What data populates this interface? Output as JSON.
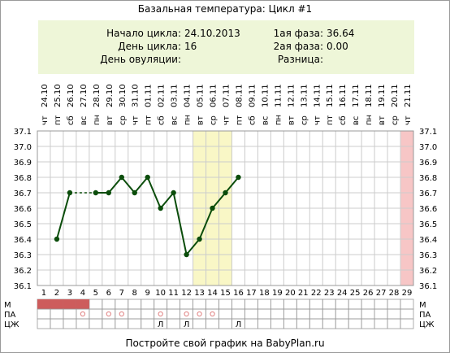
{
  "title": "Базальная температура: Цикл #1",
  "info": {
    "start_label": "Начало цикла:",
    "start_value": "24.10.2013",
    "day_label": "День цикла:",
    "day_value": "16",
    "ovulation_label": "День овуляции:",
    "ovulation_value": "",
    "phase1_label": "1ая фаза:",
    "phase1_value": "36.64",
    "phase2_label": "2ая фаза:",
    "phase2_value": "0.00",
    "diff_label": "Разница:",
    "diff_value": ""
  },
  "footer": "Постройте свой график на BabyPlan.ru",
  "colors": {
    "info_bg": "#eef6d8",
    "line": "#0b4d0b",
    "highlight": "#f9f7c6",
    "end_day": "#f7c6c6",
    "menstruation": "#cd5c5c",
    "marker": "#e08080"
  },
  "chart_data": {
    "type": "line",
    "days": [
      1,
      2,
      3,
      4,
      5,
      6,
      7,
      8,
      9,
      10,
      11,
      12,
      13,
      14,
      15,
      16,
      17,
      18,
      19,
      20,
      21,
      22,
      23,
      24,
      25,
      26,
      27,
      28,
      29
    ],
    "weekdays": [
      "чт",
      "пт",
      "сб",
      "вс",
      "пн",
      "вт",
      "ср",
      "чт",
      "пт",
      "сб",
      "вс",
      "пн",
      "вт",
      "ср",
      "чт",
      "пт",
      "сб",
      "вс",
      "пн",
      "вт",
      "ср",
      "чт",
      "пт",
      "сб",
      "вс",
      "пн",
      "вт",
      "ср",
      "чт"
    ],
    "dates": [
      "24.10",
      "25.10",
      "26.10",
      "27.10",
      "28.10",
      "29.10",
      "30.10",
      "31.10",
      "01.11",
      "02.11",
      "03.11",
      "04.11",
      "05.11",
      "06.11",
      "07.11",
      "08.11",
      "09.11",
      "10.11",
      "11.11",
      "12.11",
      "13.11",
      "14.11",
      "15.11",
      "16.11",
      "17.11",
      "18.11",
      "19.11",
      "20.11",
      "21.11"
    ],
    "temperature": [
      null,
      36.4,
      36.7,
      null,
      36.7,
      36.7,
      36.8,
      36.7,
      36.8,
      36.6,
      36.7,
      36.3,
      36.4,
      36.6,
      36.7,
      36.8
    ],
    "dashed_gaps": [
      [
        3,
        5
      ]
    ],
    "ylim": [
      36.1,
      37.1
    ],
    "yticks": [
      "37.1",
      "37.0",
      "36.9",
      "36.8",
      "36.7",
      "36.6",
      "36.5",
      "36.4",
      "36.3",
      "36.2",
      "36.1"
    ],
    "highlight_days": [
      13,
      14,
      15
    ],
    "end_day": 29,
    "rows": [
      {
        "label": "М",
        "days": [
          1,
          2,
          3,
          4
        ]
      },
      {
        "label": "ПА",
        "days": [
          4,
          6,
          7,
          10,
          12,
          13,
          14
        ]
      },
      {
        "label": "ЦЖ",
        "days": [
          10,
          12,
          16
        ],
        "marks": [
          "Л",
          "Л",
          "Л"
        ]
      }
    ],
    "grid": true
  }
}
